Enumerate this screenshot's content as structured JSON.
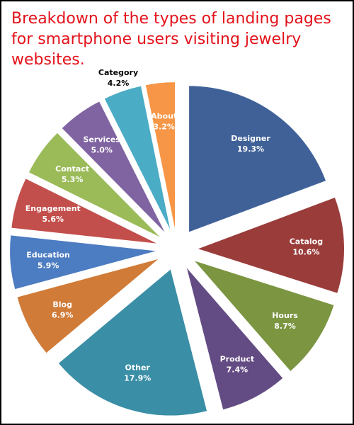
{
  "title": "Breakdown of the types of landing pages for smartphone users visiting jewelry websites.",
  "chart_data": {
    "type": "pie",
    "title": "Breakdown of the types of landing pages for smartphone users visiting jewelry websites.",
    "exploded": true,
    "slices": [
      {
        "label": "Designer",
        "value": 19.3,
        "display": "19.3%",
        "color": "#3f6198"
      },
      {
        "label": "Catalog",
        "value": 10.6,
        "display": "10.6%",
        "color": "#9a3c3a"
      },
      {
        "label": "Hours",
        "value": 8.7,
        "display": "8.7%",
        "color": "#7b9541"
      },
      {
        "label": "Product",
        "value": 7.4,
        "display": "7.4%",
        "color": "#634b83"
      },
      {
        "label": "Other",
        "value": 17.9,
        "display": "17.9%",
        "color": "#3a8ea5"
      },
      {
        "label": "Blog",
        "value": 6.9,
        "display": "6.9%",
        "color": "#d07b38"
      },
      {
        "label": "Education",
        "value": 5.9,
        "display": "5.9%",
        "color": "#4c7cc1"
      },
      {
        "label": "Engagement",
        "value": 5.6,
        "display": "5.6%",
        "color": "#c24f4c"
      },
      {
        "label": "Contact",
        "value": 5.3,
        "display": "5.3%",
        "color": "#9bbb59"
      },
      {
        "label": "Services",
        "value": 5.0,
        "display": "5.0%",
        "color": "#8064a2"
      },
      {
        "label": "Category",
        "value": 4.2,
        "display": "4.2%",
        "color": "#4bacc6"
      },
      {
        "label": "About",
        "value": 3.2,
        "display": "3.2%",
        "color": "#f79646"
      }
    ]
  }
}
